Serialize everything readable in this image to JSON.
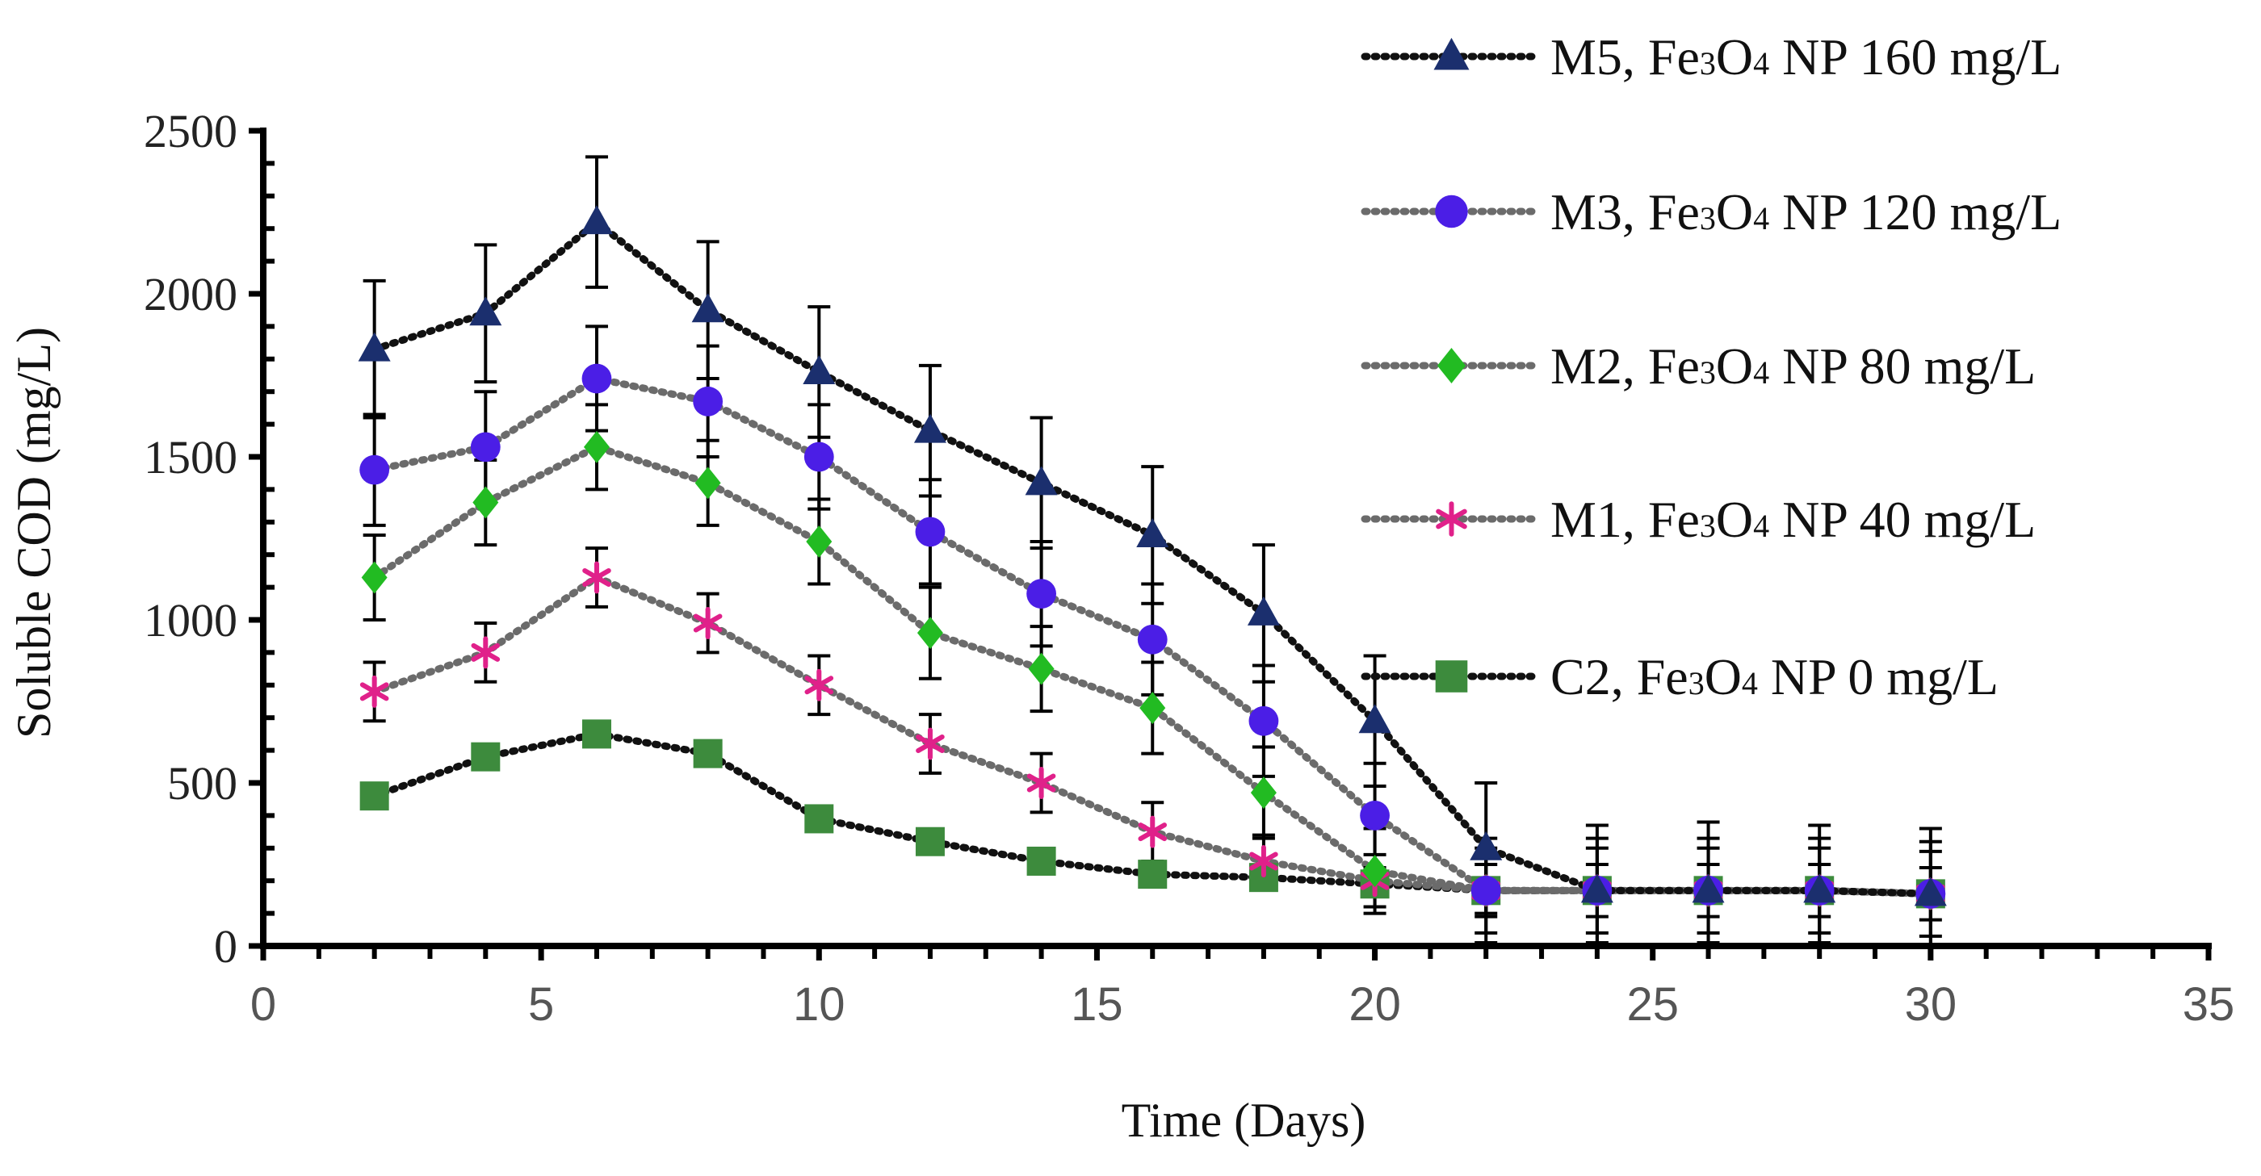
{
  "chart_data": {
    "type": "line",
    "title": "",
    "xlabel": "Time (Days)",
    "ylabel": "Soluble COD (mg/L)",
    "xlim": [
      0,
      35
    ],
    "ylim": [
      0,
      2500
    ],
    "x_ticks": [
      0,
      5,
      10,
      15,
      20,
      25,
      30,
      35
    ],
    "y_ticks": [
      0,
      500,
      1000,
      1500,
      2000,
      2500
    ],
    "x_tick_labels": [
      "0",
      "5",
      "10",
      "15",
      "20",
      "25",
      "30",
      "35"
    ],
    "y_tick_labels": [
      "0",
      "500",
      "1000",
      "1500",
      "2000",
      "2500"
    ],
    "grid": false,
    "legend_position": "top-right",
    "x": [
      2,
      4,
      6,
      8,
      10,
      12,
      14,
      16,
      18,
      20,
      22,
      24,
      26,
      28,
      30
    ],
    "series": [
      {
        "name": "M5, Fe3O4 NP 160 mg/L",
        "legend": {
          "prefix": "M5, Fe",
          "sub1": "3",
          "mid": "O",
          "sub2": "4",
          "suffix": " NP 160 mg/L"
        },
        "marker": "triangle",
        "color": "#1b2f6e",
        "line_color": "#111111",
        "values": [
          1830,
          1940,
          2220,
          1950,
          1760,
          1580,
          1420,
          1260,
          1020,
          690,
          300,
          170,
          170,
          170,
          160
        ],
        "error": [
          210,
          210,
          200,
          210,
          200,
          200,
          200,
          210,
          210,
          200,
          200,
          200,
          210,
          200,
          200
        ]
      },
      {
        "name": "M3, Fe3O4 NP 120 mg/L",
        "legend": {
          "prefix": "M3, Fe",
          "sub1": "3",
          "mid": "O",
          "sub2": "4",
          "suffix": " NP 120 mg/L"
        },
        "marker": "circle",
        "color": "#4b1ee6",
        "line_color": "#6b6b6b",
        "values": [
          1460,
          1530,
          1740,
          1670,
          1500,
          1270,
          1080,
          940,
          690,
          400,
          170,
          170,
          170,
          170,
          160
        ],
        "error": [
          170,
          170,
          160,
          170,
          160,
          160,
          160,
          170,
          170,
          160,
          160,
          160,
          160,
          160,
          160
        ]
      },
      {
        "name": "M2, Fe3O4 NP 80 mg/L",
        "legend": {
          "prefix": "M2, Fe",
          "sub1": "3",
          "mid": "O",
          "sub2": "4",
          "suffix": " NP 80 mg/L"
        },
        "marker": "diamond",
        "color": "#22bb22",
        "line_color": "#6b6b6b",
        "values": [
          1130,
          1360,
          1530,
          1420,
          1240,
          960,
          850,
          730,
          470,
          230,
          170,
          170,
          170,
          170,
          160
        ],
        "error": [
          130,
          130,
          130,
          130,
          130,
          140,
          130,
          140,
          140,
          130,
          130,
          130,
          130,
          130,
          130
        ]
      },
      {
        "name": "M1, Fe3O4 NP 40 mg/L",
        "legend": {
          "prefix": "M1, Fe",
          "sub1": "3",
          "mid": "O",
          "sub2": "4",
          "suffix": " NP 40 mg/L"
        },
        "marker": "asterisk",
        "color": "#e0218a",
        "line_color": "#6b6b6b",
        "values": [
          780,
          900,
          1130,
          990,
          800,
          620,
          500,
          350,
          260,
          200,
          170,
          170,
          170,
          170,
          160
        ],
        "error": [
          90,
          90,
          90,
          90,
          90,
          90,
          90,
          90,
          80,
          80,
          80,
          80,
          80,
          80,
          80
        ]
      },
      {
        "name": "C2, Fe3O4 NP 0 mg/L",
        "legend": {
          "prefix": "C2, Fe",
          "sub1": "3",
          "mid": "O",
          "sub2": "4",
          "suffix": " NP 0 mg/L"
        },
        "marker": "square",
        "color": "#3d8b3d",
        "line_color": "#111111",
        "values": [
          460,
          580,
          650,
          590,
          390,
          320,
          260,
          220,
          210,
          190,
          170,
          170,
          170,
          170,
          160
        ],
        "error": [
          0,
          0,
          0,
          0,
          0,
          0,
          0,
          0,
          0,
          0,
          0,
          0,
          0,
          0,
          0
        ]
      }
    ]
  }
}
